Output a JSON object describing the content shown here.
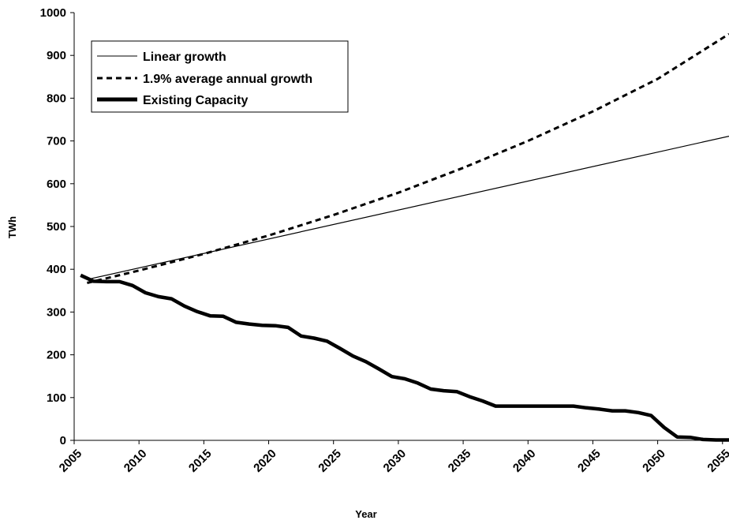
{
  "chart_data": {
    "type": "line",
    "title": "",
    "xlabel": "Year",
    "ylabel": "TWh",
    "xlim": [
      2005,
      2055.5
    ],
    "ylim": [
      0,
      1000
    ],
    "x_ticks": [
      2005,
      2010,
      2015,
      2020,
      2025,
      2030,
      2035,
      2040,
      2045,
      2050,
      2055
    ],
    "y_ticks": [
      0,
      100,
      200,
      300,
      400,
      500,
      600,
      700,
      800,
      900,
      1000
    ],
    "grid": false,
    "legend_position": "top-left",
    "series": [
      {
        "name": "Linear growth",
        "style": "thin-solid",
        "x": [
          2006,
          2055.5
        ],
        "y": [
          376,
          711
        ]
      },
      {
        "name": "1.9% average annual growth",
        "style": "dashed",
        "x": [
          2006,
          2010,
          2015,
          2020,
          2025,
          2030,
          2035,
          2040,
          2045,
          2050,
          2055.5
        ],
        "y": [
          368,
          397,
          436,
          479,
          527,
          579,
          637,
          700,
          769,
          845,
          950
        ]
      },
      {
        "name": "Existing Capacity",
        "style": "thick-solid",
        "x": [
          2005.5,
          2006.5,
          2007.5,
          2008.5,
          2009.5,
          2010.5,
          2011.5,
          2012.5,
          2013.5,
          2014.5,
          2015.5,
          2016.5,
          2017.5,
          2018.5,
          2019.5,
          2020.5,
          2021.5,
          2022.5,
          2023.5,
          2024.5,
          2025.5,
          2026.5,
          2027.5,
          2028.5,
          2029.5,
          2030.5,
          2031.5,
          2032.5,
          2033.5,
          2034.5,
          2035.5,
          2036.5,
          2037.5,
          2038.5,
          2039.5,
          2040.5,
          2041.5,
          2042.5,
          2043.5,
          2044.5,
          2045.5,
          2046.5,
          2047.5,
          2048.5,
          2049.5,
          2050.5,
          2051.5,
          2052.5,
          2053.5,
          2054.5,
          2055.5
        ],
        "y": [
          386,
          372,
          371,
          371,
          362,
          345,
          336,
          331,
          314,
          301,
          291,
          290,
          276,
          272,
          269,
          268,
          264,
          244,
          239,
          232,
          215,
          197,
          184,
          167,
          149,
          144,
          134,
          120,
          116,
          114,
          102,
          92,
          80,
          80,
          80,
          80,
          80,
          80,
          80,
          76,
          73,
          69,
          69,
          65,
          58,
          30,
          8,
          7,
          2,
          1,
          1
        ]
      }
    ]
  }
}
